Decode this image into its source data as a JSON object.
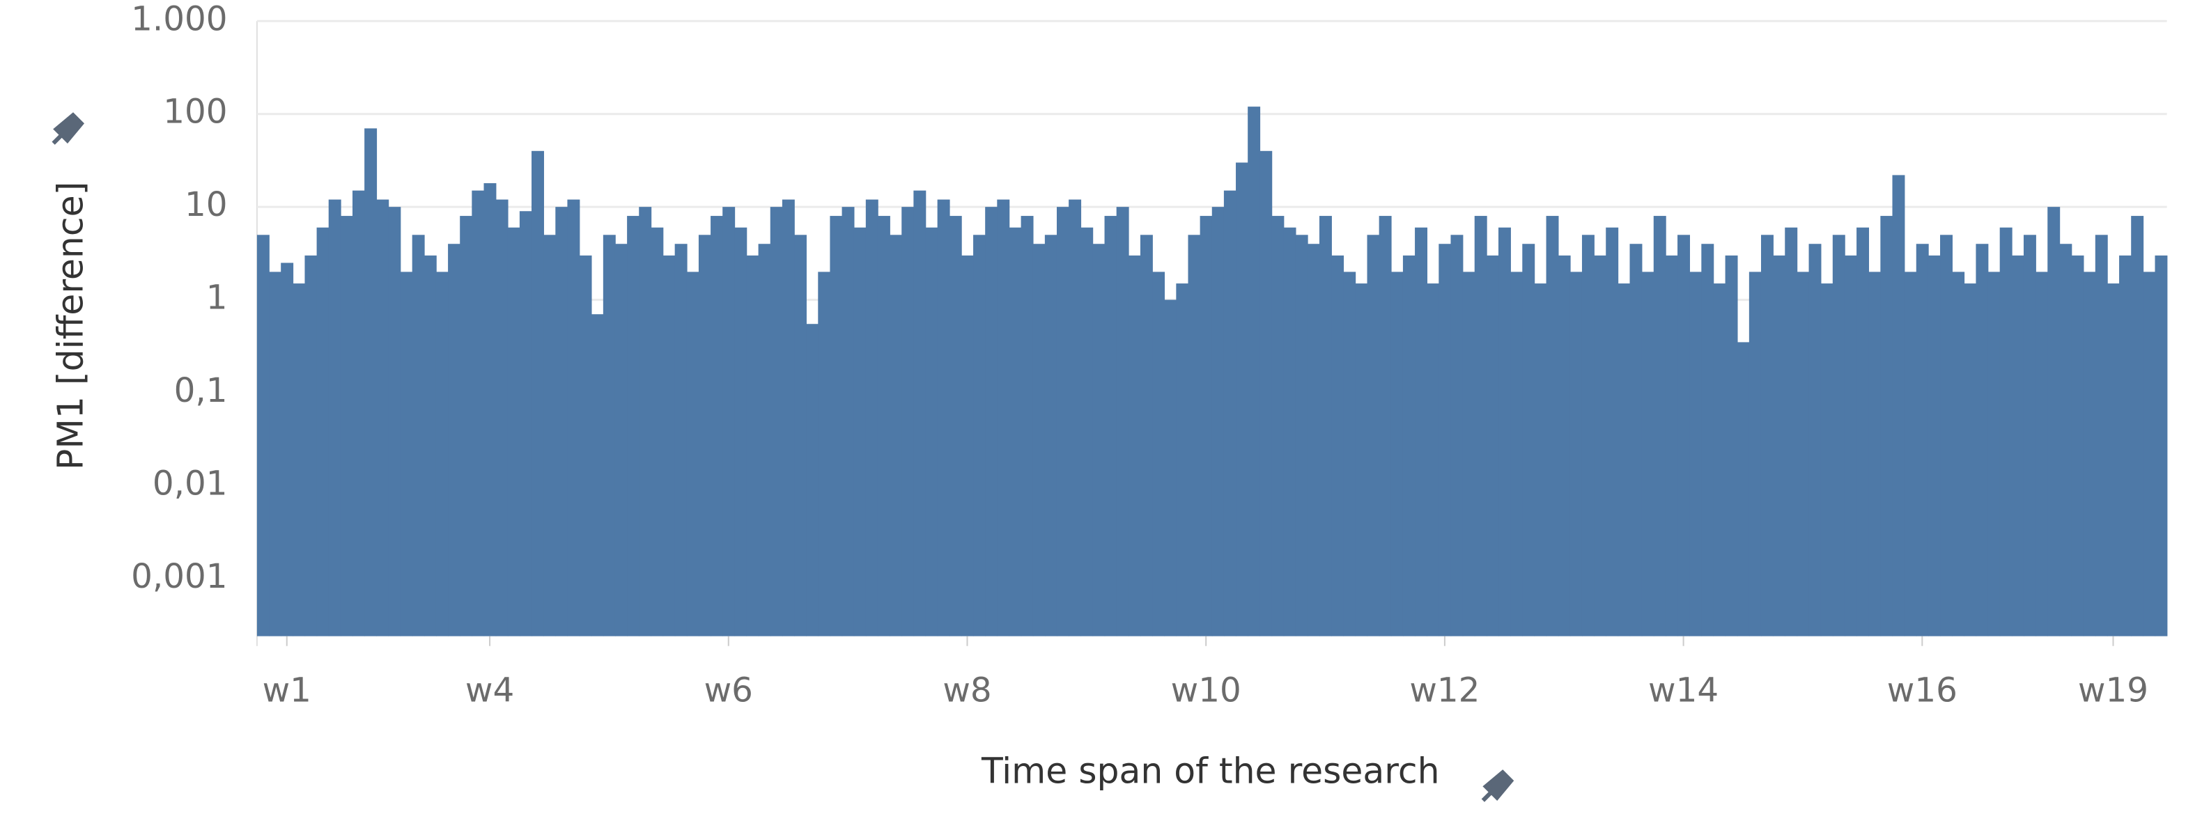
{
  "chart_data": {
    "type": "bar",
    "y_label": "PM1 [difference]",
    "x_label": "Time span of the research",
    "color": "#4e79a7",
    "log_scale": true,
    "grid": true,
    "ylim": [
      0.00024,
      1000
    ],
    "yticks": [
      {
        "value": 0.001,
        "label": "0,001"
      },
      {
        "value": 0.01,
        "label": "0,01"
      },
      {
        "value": 0.1,
        "label": "0,1"
      },
      1,
      10,
      100,
      {
        "value": 1000,
        "label": "1.000"
      }
    ],
    "categories": [
      null,
      null,
      "w1",
      null,
      null,
      null,
      null,
      null,
      null,
      null,
      null,
      null,
      null,
      null,
      null,
      null,
      null,
      null,
      null,
      "w4",
      null,
      null,
      null,
      null,
      null,
      null,
      null,
      null,
      null,
      null,
      null,
      null,
      null,
      null,
      null,
      null,
      null,
      null,
      null,
      "w6",
      null,
      null,
      null,
      null,
      null,
      null,
      null,
      null,
      null,
      null,
      null,
      null,
      null,
      null,
      null,
      null,
      null,
      null,
      null,
      "w8",
      null,
      null,
      null,
      null,
      null,
      null,
      null,
      null,
      null,
      null,
      null,
      null,
      null,
      null,
      null,
      null,
      null,
      null,
      null,
      "w10",
      null,
      null,
      null,
      null,
      null,
      null,
      null,
      null,
      null,
      null,
      null,
      null,
      null,
      null,
      null,
      null,
      null,
      null,
      null,
      "w12",
      null,
      null,
      null,
      null,
      null,
      null,
      null,
      null,
      null,
      null,
      null,
      null,
      null,
      null,
      null,
      null,
      null,
      null,
      null,
      "w14",
      null,
      null,
      null,
      null,
      null,
      null,
      null,
      null,
      null,
      null,
      null,
      null,
      null,
      null,
      null,
      null,
      null,
      null,
      null,
      "w16",
      null,
      null,
      null,
      null,
      null,
      null,
      null,
      null,
      null,
      null,
      null,
      null,
      null,
      null,
      null,
      "w19",
      null,
      null,
      null,
      null
    ],
    "values": [
      5,
      2,
      2.5,
      1.5,
      3,
      6,
      12,
      8,
      15,
      70,
      12,
      10,
      2,
      5,
      3,
      2,
      4,
      8,
      15,
      18,
      12,
      6,
      9,
      40,
      5,
      10,
      12,
      3,
      0.7,
      5,
      4,
      8,
      10,
      6,
      3,
      4,
      2,
      5,
      8,
      10,
      6,
      3,
      4,
      10,
      12,
      5,
      0.55,
      2,
      8,
      10,
      6,
      12,
      8,
      5,
      10,
      15,
      6,
      12,
      8,
      3,
      5,
      10,
      12,
      6,
      8,
      4,
      5,
      10,
      12,
      6,
      4,
      8,
      10,
      3,
      5,
      2,
      1,
      1.5,
      5,
      8,
      10,
      15,
      30,
      120,
      40,
      8,
      6,
      5,
      4,
      8,
      3,
      2,
      1.5,
      5,
      8,
      2,
      3,
      6,
      1.5,
      4,
      5,
      2,
      8,
      3,
      6,
      2,
      4,
      1.5,
      8,
      3,
      2,
      5,
      3,
      6,
      1.5,
      4,
      2,
      8,
      3,
      5,
      2,
      4,
      1.5,
      3,
      0.35,
      2,
      5,
      3,
      6,
      2,
      4,
      1.5,
      5,
      3,
      6,
      2,
      8,
      22,
      2,
      4,
      3,
      5,
      2,
      1.5,
      4,
      2,
      6,
      3,
      5,
      2,
      10,
      4,
      3,
      2,
      5,
      1.5,
      3,
      8,
      2,
      3
    ]
  }
}
